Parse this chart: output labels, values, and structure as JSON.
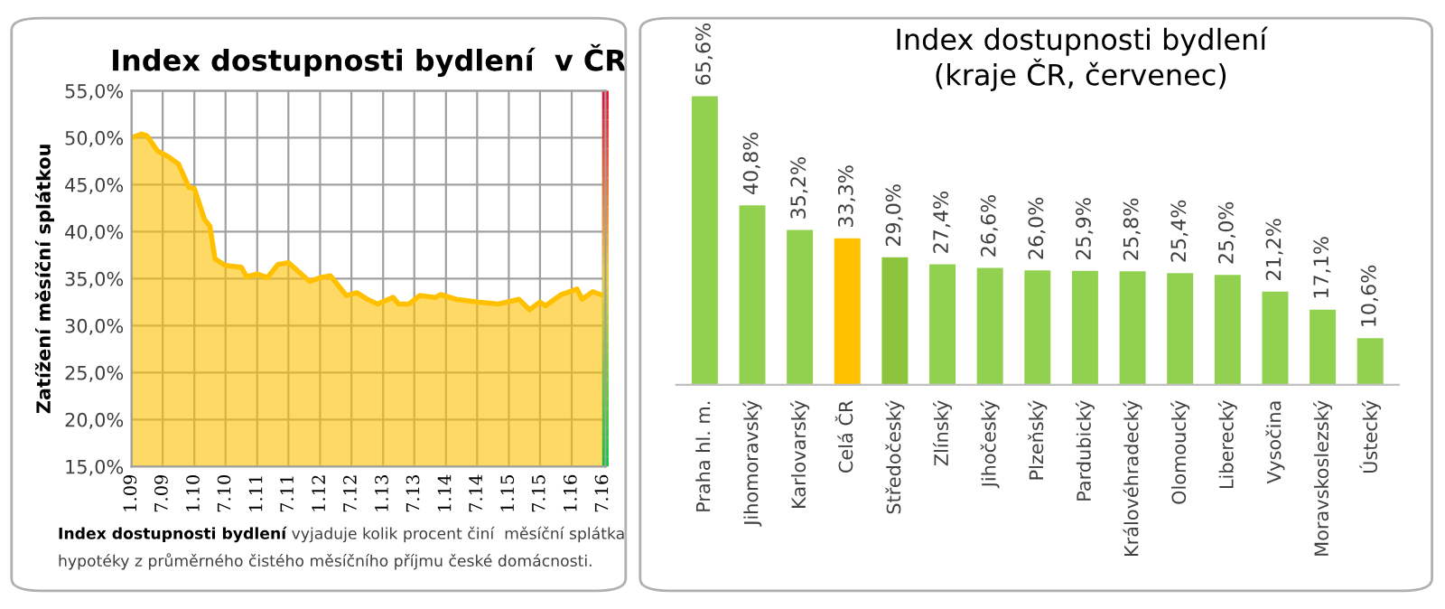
{
  "chart_data": [
    {
      "type": "area",
      "title": "Index dostupnosti bydlení  v ČR",
      "ylabel": "Zatížení měsíční splátkou",
      "x": [
        "2009-01",
        "2009-03",
        "2009-04",
        "2009-06",
        "2009-08",
        "2009-10",
        "2009-12",
        "2010-01",
        "2010-03",
        "2010-04",
        "2010-05",
        "2010-07",
        "2010-10",
        "2010-11",
        "2011-01",
        "2011-03",
        "2011-05",
        "2011-07",
        "2011-09",
        "2011-11",
        "2012-01",
        "2012-03",
        "2012-04",
        "2012-06",
        "2012-08",
        "2012-10",
        "2012-12",
        "2013-03",
        "2013-04",
        "2013-06",
        "2013-08",
        "2013-11",
        "2013-12",
        "2014-03",
        "2014-07",
        "2014-11",
        "2015-03",
        "2015-05",
        "2015-07",
        "2015-08",
        "2015-11",
        "2016-02",
        "2016-03",
        "2016-05",
        "2016-07"
      ],
      "series": [
        {
          "color": "#ffc000",
          "values": [
            50.0,
            50.4,
            50.2,
            48.6,
            48.0,
            47.2,
            44.7,
            44.6,
            41.3,
            40.6,
            37.1,
            36.4,
            36.2,
            35.2,
            35.5,
            35.1,
            36.5,
            36.7,
            35.7,
            34.7,
            35.1,
            35.3,
            34.6,
            33.2,
            33.5,
            32.8,
            32.3,
            33.0,
            32.3,
            32.3,
            33.2,
            33.0,
            33.3,
            32.8,
            32.5,
            32.3,
            32.8,
            31.7,
            32.5,
            32.1,
            33.3,
            33.9,
            32.8,
            33.6,
            33.2
          ]
        }
      ],
      "xlim": [
        "2009-01",
        "2016-07-15"
      ],
      "xticks": [
        {
          "value": "2009-01",
          "label": "1.09"
        },
        {
          "value": "2009-07",
          "label": "7.09"
        },
        {
          "value": "2010-01",
          "label": "1.10"
        },
        {
          "value": "2010-07",
          "label": "7.10"
        },
        {
          "value": "2011-01",
          "label": "1.11"
        },
        {
          "value": "2011-07",
          "label": "7.11"
        },
        {
          "value": "2012-01",
          "label": "1.12"
        },
        {
          "value": "2012-07",
          "label": "7.12"
        },
        {
          "value": "2013-01",
          "label": "1.13"
        },
        {
          "value": "2013-07",
          "label": "7.13"
        },
        {
          "value": "2014-01",
          "label": "1.14"
        },
        {
          "value": "2014-07",
          "label": "7.14"
        },
        {
          "value": "2015-01",
          "label": "1.15"
        },
        {
          "value": "2015-07",
          "label": "7.15"
        },
        {
          "value": "2016-01",
          "label": "1.16"
        },
        {
          "value": "2016-07",
          "label": "7.16"
        }
      ],
      "ylim": [
        15,
        55
      ],
      "yticks": [
        {
          "value": 15,
          "label": "15,0%"
        },
        {
          "value": 20,
          "label": "20,0%"
        },
        {
          "value": 25,
          "label": "25,0%"
        },
        {
          "value": 30,
          "label": "30,0%"
        },
        {
          "value": 35,
          "label": "35,0%"
        },
        {
          "value": 40,
          "label": "40,0%"
        },
        {
          "value": 45,
          "label": "45,0%"
        },
        {
          "value": 50,
          "label": "50,0%"
        },
        {
          "value": 55,
          "label": "55,0%"
        }
      ],
      "grid": true,
      "annotations": [
        "Index dostupnosti bydlení",
        "vyjaduje kolik procent činí  měsíční splátka",
        "hypotéky z průměrného čistého měsíčního příjmu české domácnosti."
      ]
    },
    {
      "type": "bar",
      "title": "Index dostupnosti bydlení\n(kraje ČR, červenec)",
      "categories": [
        "Praha hl. m.",
        "Jihomoravský",
        "Karlovarský",
        "Celá ČR",
        "Středočeský",
        "Zlínský",
        "Jihočeský",
        "Plzeňský",
        "Pardubický",
        "Královéhradecký",
        "Olomoucký",
        "Liberecký",
        "Vysočina",
        "Moravskoslezský",
        "Ústecký"
      ],
      "values": [
        65.6,
        40.8,
        35.2,
        33.3,
        29.0,
        27.4,
        26.6,
        26.0,
        25.9,
        25.8,
        25.4,
        25.0,
        21.2,
        17.1,
        10.6
      ],
      "colors": [
        "#92d050",
        "#92d050",
        "#92d050",
        "#ffc000",
        "#8cc43c",
        "#92d050",
        "#92d050",
        "#92d050",
        "#92d050",
        "#92d050",
        "#92d050",
        "#92d050",
        "#92d050",
        "#92d050",
        "#92d050"
      ],
      "value_labels": [
        "65,6%",
        "40,8%",
        "35,2%",
        "33,3%",
        "29,0%",
        "27,4%",
        "26,6%",
        "26,0%",
        "25,9%",
        "25,8%",
        "25,4%",
        "25,0%",
        "21,2%",
        "17,1%",
        "10,6%"
      ]
    }
  ]
}
